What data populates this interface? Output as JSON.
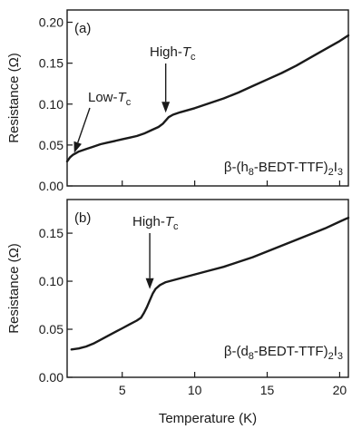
{
  "chart_data": [
    {
      "type": "line",
      "panel_label": "(a)",
      "sample": {
        "prefix": "β-(h",
        "isotope_sub": "8",
        "middle": "-BEDT-TTF)",
        "sub1": "2",
        "mid2": "I",
        "sub2": "3"
      },
      "xlabel": "",
      "ylabel": "Resistance (Ω)",
      "xlim": [
        1.2,
        20.6
      ],
      "ylim": [
        0.0,
        0.215
      ],
      "yticks": [
        0.0,
        0.05,
        0.1,
        0.15,
        0.2
      ],
      "ytick_labels": [
        "0.00",
        "0.05",
        "0.10",
        "0.15",
        "0.20"
      ],
      "xticks": [
        5,
        10,
        15,
        20
      ],
      "show_xtick_labels": false,
      "grid": false,
      "annotations": [
        {
          "text": "High-",
          "italic": "T",
          "sub": "c",
          "arrow_x": 8.0,
          "arrow_y": 0.085
        },
        {
          "text": "Low-",
          "italic": "T",
          "sub": "c",
          "arrow_x": 1.5,
          "arrow_y": 0.037
        }
      ],
      "series": [
        {
          "x": [
            1.2,
            1.4,
            1.6,
            1.8,
            2.0,
            2.5,
            3.0,
            3.5,
            4.0,
            4.5,
            5.0,
            5.5,
            6.0,
            6.5,
            7.0,
            7.5,
            7.8,
            8.0,
            8.2,
            8.5,
            9.0,
            10.0,
            11.0,
            12.0,
            13.0,
            14.0,
            15.0,
            16.0,
            17.0,
            18.0,
            19.0,
            20.0,
            20.6
          ],
          "y": [
            0.03,
            0.035,
            0.038,
            0.04,
            0.042,
            0.045,
            0.048,
            0.051,
            0.053,
            0.055,
            0.057,
            0.059,
            0.061,
            0.064,
            0.068,
            0.072,
            0.076,
            0.08,
            0.084,
            0.087,
            0.09,
            0.095,
            0.101,
            0.107,
            0.114,
            0.122,
            0.13,
            0.138,
            0.147,
            0.157,
            0.167,
            0.177,
            0.184
          ]
        }
      ]
    },
    {
      "type": "line",
      "panel_label": "(b)",
      "sample": {
        "prefix": "β-(d",
        "isotope_sub": "8",
        "middle": "-BEDT-TTF)",
        "sub1": "2",
        "mid2": "I",
        "sub2": "3"
      },
      "xlabel": "Temperature (K)",
      "ylabel": "Resistance (Ω)",
      "xlim": [
        1.2,
        20.6
      ],
      "ylim": [
        0.0,
        0.185
      ],
      "yticks": [
        0.0,
        0.05,
        0.1,
        0.15
      ],
      "ytick_labels": [
        "0.00",
        "0.05",
        "0.10",
        "0.15"
      ],
      "xticks": [
        5,
        10,
        15,
        20
      ],
      "xtick_labels": [
        "5",
        "10",
        "15",
        "20"
      ],
      "show_xtick_labels": true,
      "grid": false,
      "annotations": [
        {
          "text": "High-",
          "italic": "T",
          "sub": "c",
          "arrow_x": 6.9,
          "arrow_y": 0.088
        }
      ],
      "series": [
        {
          "x": [
            1.5,
            2.0,
            2.5,
            3.0,
            3.5,
            4.0,
            4.5,
            5.0,
            5.5,
            6.0,
            6.3,
            6.5,
            6.7,
            6.9,
            7.1,
            7.3,
            7.6,
            8.0,
            8.5,
            9.0,
            10.0,
            11.0,
            12.0,
            13.0,
            14.0,
            15.0,
            16.0,
            17.0,
            18.0,
            19.0,
            20.0,
            20.6
          ],
          "y": [
            0.029,
            0.03,
            0.032,
            0.035,
            0.039,
            0.043,
            0.047,
            0.051,
            0.055,
            0.059,
            0.062,
            0.067,
            0.073,
            0.08,
            0.087,
            0.092,
            0.096,
            0.099,
            0.101,
            0.103,
            0.107,
            0.111,
            0.115,
            0.12,
            0.125,
            0.131,
            0.137,
            0.143,
            0.149,
            0.155,
            0.162,
            0.166
          ]
        }
      ]
    }
  ]
}
